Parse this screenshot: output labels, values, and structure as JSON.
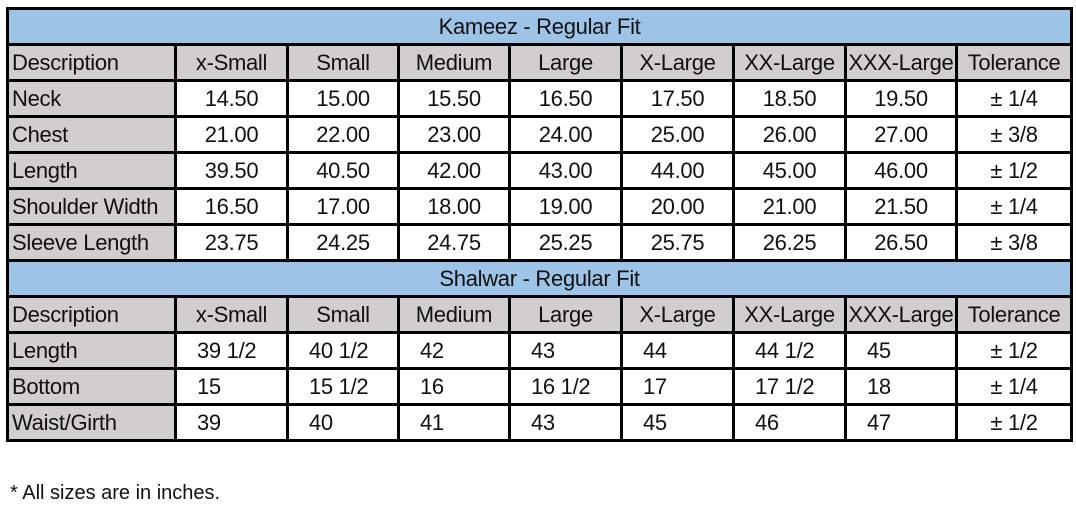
{
  "columns": [
    "Description",
    "x-Small",
    "Small",
    "Medium",
    "Large",
    "X-Large",
    "XX-Large",
    "XXX-Large",
    "Tolerance"
  ],
  "sections": [
    {
      "title": "Kameez - Regular Fit",
      "rows": [
        {
          "label": "Neck",
          "values": [
            "14.50",
            "15.00",
            "15.50",
            "16.50",
            "17.50",
            "18.50",
            "19.50"
          ],
          "tolerance": "± 1/4"
        },
        {
          "label": "Chest",
          "values": [
            "21.00",
            "22.00",
            "23.00",
            "24.00",
            "25.00",
            "26.00",
            "27.00"
          ],
          "tolerance": "± 3/8"
        },
        {
          "label": "Length",
          "values": [
            "39.50",
            "40.50",
            "42.00",
            "43.00",
            "44.00",
            "45.00",
            "46.00"
          ],
          "tolerance": "± 1/2"
        },
        {
          "label": "Shoulder Width",
          "values": [
            "16.50",
            "17.00",
            "18.00",
            "19.00",
            "20.00",
            "21.00",
            "21.50"
          ],
          "tolerance": "± 1/4"
        },
        {
          "label": "Sleeve Length",
          "values": [
            "23.75",
            "24.25",
            "24.75",
            "25.25",
            "25.75",
            "26.25",
            "26.50"
          ],
          "tolerance": "± 3/8"
        }
      ]
    },
    {
      "title": "Shalwar - Regular Fit",
      "rows": [
        {
          "label": "Length",
          "values": [
            "39 1/2",
            "40 1/2",
            "42",
            "43",
            "44",
            "44 1/2",
            "45"
          ],
          "tolerance": "± 1/2"
        },
        {
          "label": "Bottom",
          "values": [
            "15",
            "15 1/2",
            "16",
            "16 1/2",
            "17",
            "17 1/2",
            "18"
          ],
          "tolerance": "± 1/4"
        },
        {
          "label": "Waist/Girth",
          "values": [
            "39",
            "40",
            "41",
            "43",
            "45",
            "46",
            "47"
          ],
          "tolerance": "± 1/2"
        }
      ]
    }
  ],
  "footnote": "* All sizes are in inches.",
  "colors": {
    "title_bg": "#9dc3e6",
    "header_bg": "#d0cece",
    "border": "#000000"
  }
}
